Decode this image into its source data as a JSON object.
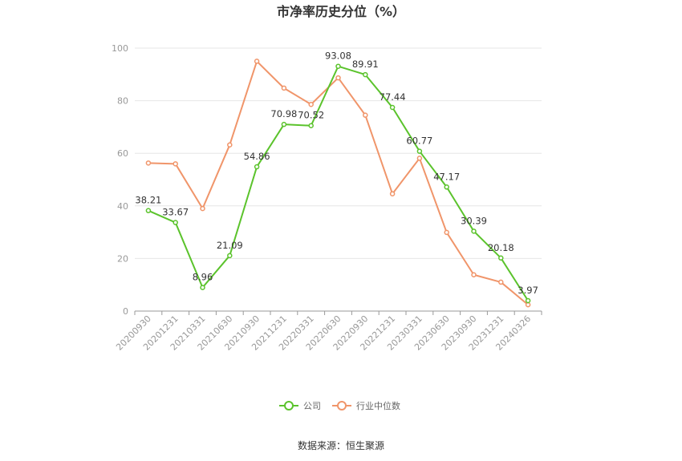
{
  "chart_data": {
    "type": "line",
    "title": "市净率历史分位（%）",
    "categories": [
      "20200930",
      "20201231",
      "20210331",
      "20210630",
      "20210930",
      "20211231",
      "20220331",
      "20220630",
      "20220930",
      "20221231",
      "20230331",
      "20230630",
      "20230930",
      "20231231",
      "20240326"
    ],
    "ylim": [
      0,
      100
    ],
    "yticks": [
      0,
      20,
      40,
      60,
      80,
      100
    ],
    "grid": true,
    "legend_position": "bottom",
    "series": [
      {
        "name": "公司",
        "color": "#5bc32c",
        "values": [
          38.21,
          33.67,
          8.96,
          21.09,
          54.86,
          70.98,
          70.52,
          93.08,
          89.91,
          77.44,
          60.77,
          47.17,
          30.39,
          20.18,
          3.97
        ],
        "labels": [
          "38.21",
          "33.67",
          "8.96",
          "21.09",
          "54.86",
          "70.98",
          "70.52",
          "93.08",
          "89.91",
          "77.44",
          "60.77",
          "47.17",
          "30.39",
          "20.18",
          "3.97"
        ]
      },
      {
        "name": "行业中位数",
        "color": "#f0956a",
        "values": [
          56.3,
          56.0,
          39.0,
          63.2,
          95.0,
          84.8,
          78.6,
          88.7,
          74.5,
          44.6,
          58.1,
          29.9,
          13.8,
          11.0,
          2.4
        ]
      }
    ]
  },
  "source": "数据来源：恒生聚源"
}
